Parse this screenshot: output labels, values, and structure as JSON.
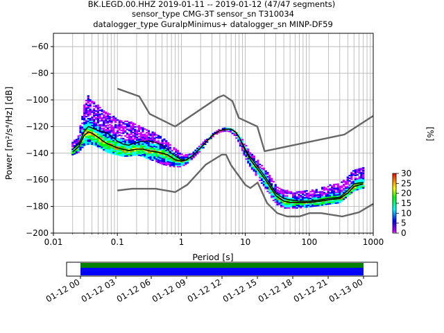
{
  "title_lines": [
    "BK.LEGD.00.HHZ   2019-01-11 -- 2019-01-12  (47/47 segments)",
    "sensor_type CMG-3T sensor_sn T310034",
    "datalogger_type GuralpMinimus+ datalogger_sn MINP-DF59"
  ],
  "chart_data": [
    {
      "type": "heatmap",
      "title": "BK.LEGD.00.HHZ   2019-01-11 -- 2019-01-12  (47/47 segments)",
      "xlabel": "Period [s]",
      "ylabel": "Power [m²/s⁴/Hz] [dB]",
      "xscale": "log",
      "xlim": [
        0.01,
        1000
      ],
      "ylim": [
        -200,
        -50
      ],
      "grid": true,
      "x_ticks": [
        0.01,
        0.1,
        1,
        10,
        100,
        1000
      ],
      "x_tick_labels": [
        "0.01",
        "0.1",
        "1",
        "10",
        "100",
        "1000"
      ],
      "y_ticks": [
        -200,
        -180,
        -160,
        -140,
        -120,
        -100,
        -80,
        -60
      ],
      "y_tick_labels": [
        "−200",
        "−180",
        "−160",
        "−140",
        "−120",
        "−100",
        "−80",
        "−60"
      ],
      "colorbar": {
        "label": "[%]",
        "range": [
          0,
          30
        ],
        "ticks": [
          0,
          5,
          10,
          15,
          20,
          25,
          30
        ],
        "colormap": "pqlx"
      },
      "colormap_stops": [
        "#ffffff",
        "#cc00ff",
        "#0000ff",
        "#00ffff",
        "#00ff00",
        "#ffff00",
        "#ff8000",
        "#ff0000"
      ],
      "noise_models": {
        "color": "#666666",
        "high_model": {
          "name": "NHNM",
          "x": [
            0.1,
            0.22,
            0.32,
            0.8,
            3.8,
            4.6,
            6.3,
            7.9,
            15.4,
            20,
            354.8,
            1000
          ],
          "y": [
            -91.5,
            -97.4,
            -110.5,
            -120,
            -98,
            -96.5,
            -101,
            -113.5,
            -120,
            -138.5,
            -126,
            -112
          ]
        },
        "low_model": {
          "name": "NLNM",
          "x": [
            0.1,
            0.17,
            0.4,
            0.8,
            1.24,
            2.4,
            4.3,
            5.0,
            6.0,
            10.0,
            12.0,
            15.6,
            21.9,
            31.6,
            45.0,
            70.0,
            101.0,
            154.0,
            328.0,
            600.0,
            1000
          ],
          "y": [
            -168,
            -166.7,
            -166.7,
            -169.2,
            -163.7,
            -148.6,
            -141.1,
            -141.1,
            -149,
            -163.8,
            -166.2,
            -162.1,
            -177.5,
            -185,
            -187.5,
            -187.5,
            -185,
            -185,
            -187.5,
            -184.4,
            -178
          ]
        }
      },
      "mean_curve": {
        "color": "#000000",
        "x": [
          0.02,
          0.025,
          0.03,
          0.035,
          0.04,
          0.05,
          0.06,
          0.07,
          0.08,
          0.1,
          0.12,
          0.15,
          0.2,
          0.25,
          0.3,
          0.4,
          0.5,
          0.6,
          0.7,
          0.8,
          1.0,
          1.2,
          1.5,
          2.0,
          2.5,
          3.0,
          4.0,
          5.0,
          6.0,
          7.0,
          8.0,
          10.0,
          12.0,
          15.0,
          20.0,
          25.0,
          30.0,
          40.0,
          50.0,
          70.0,
          100.0,
          150.0,
          200.0,
          300.0,
          400.0,
          500.0,
          700.0
        ],
        "y": [
          -137,
          -133,
          -124,
          -120,
          -121,
          -123,
          -124,
          -125,
          -127,
          -131,
          -133,
          -134,
          -132,
          -131,
          -131,
          -132,
          -134,
          -137,
          -140,
          -142,
          -145,
          -145,
          -142,
          -136,
          -131,
          -127,
          -123,
          -122,
          -122,
          -124,
          -128,
          -137,
          -143,
          -149,
          -157,
          -164,
          -170,
          -174,
          -175,
          -176,
          -176,
          -175,
          -174,
          -173,
          -168,
          -163,
          -162
        ]
      },
      "mode_curve": {
        "color": "#000000",
        "x": [
          0.02,
          0.025,
          0.03,
          0.035,
          0.04,
          0.05,
          0.06,
          0.07,
          0.08,
          0.1,
          0.12,
          0.15,
          0.2,
          0.25,
          0.3,
          0.4,
          0.5,
          0.6,
          0.7,
          0.8,
          1.0,
          1.2,
          1.5,
          2.0,
          2.5,
          3.0,
          4.0,
          5.0,
          6.0,
          7.0,
          8.0,
          10.0,
          12.0,
          15.0,
          20.0,
          25.0,
          30.0,
          40.0,
          50.0,
          70.0,
          100.0,
          150.0,
          200.0,
          300.0,
          400.0,
          500.0,
          700.0
        ],
        "y": [
          -139,
          -135,
          -127,
          -124,
          -125,
          -128,
          -131,
          -133,
          -134,
          -136,
          -137,
          -138,
          -137,
          -137,
          -138,
          -139,
          -140,
          -141,
          -143,
          -145,
          -146,
          -145,
          -142,
          -136,
          -131,
          -127,
          -123,
          -122,
          -122,
          -124,
          -128,
          -138,
          -145,
          -151,
          -159,
          -166,
          -172,
          -176,
          -177,
          -177,
          -177,
          -176,
          -175,
          -174,
          -170,
          -165,
          -163
        ]
      },
      "density_band": {
        "x": [
          0.02,
          0.025,
          0.03,
          0.035,
          0.04,
          0.05,
          0.06,
          0.07,
          0.08,
          0.1,
          0.12,
          0.15,
          0.2,
          0.25,
          0.3,
          0.4,
          0.5,
          0.6,
          0.7,
          0.8,
          1.0,
          1.2,
          1.5,
          2.0,
          2.5,
          3.0,
          4.0,
          5.0,
          6.0,
          7.0,
          8.0,
          10.0,
          12.0,
          15.0,
          20.0,
          25.0,
          30.0,
          40.0,
          50.0,
          70.0,
          100.0,
          150.0,
          200.0,
          300.0,
          400.0,
          500.0,
          700.0
        ],
        "upper": [
          -132,
          -126,
          -104,
          -96,
          -100,
          -104,
          -108,
          -110,
          -111,
          -114,
          -116,
          -116,
          -118,
          -121,
          -122,
          -125,
          -128,
          -131,
          -134,
          -136,
          -140,
          -141,
          -139,
          -134,
          -129,
          -126,
          -122,
          -121,
          -121,
          -123,
          -126,
          -133,
          -139,
          -144,
          -151,
          -158,
          -164,
          -168,
          -168,
          -169,
          -168,
          -166,
          -164,
          -163,
          -158,
          -152,
          -151
        ],
        "lower": [
          -141,
          -139,
          -134,
          -133,
          -133,
          -135,
          -137,
          -139,
          -140,
          -141,
          -142,
          -142,
          -141,
          -142,
          -144,
          -146,
          -148,
          -149,
          -150,
          -150,
          -150,
          -148,
          -144,
          -138,
          -133,
          -128,
          -124,
          -123,
          -124,
          -127,
          -132,
          -143,
          -150,
          -157,
          -165,
          -172,
          -178,
          -181,
          -181,
          -181,
          -180,
          -179,
          -178,
          -177,
          -172,
          -168,
          -166
        ]
      }
    },
    {
      "type": "timeline",
      "tick_labels": [
        "01-12 00",
        "01-12 03",
        "01-12 06",
        "01-12 09",
        "01-12 12",
        "01-12 15",
        "01-12 18",
        "01-12 21",
        "01-13 00"
      ],
      "bands": [
        {
          "color": "#008000",
          "start": "01-12 00",
          "end": "01-13 00"
        },
        {
          "color": "#0000ff",
          "start": "01-12 00",
          "end": "01-13 00"
        }
      ]
    }
  ]
}
